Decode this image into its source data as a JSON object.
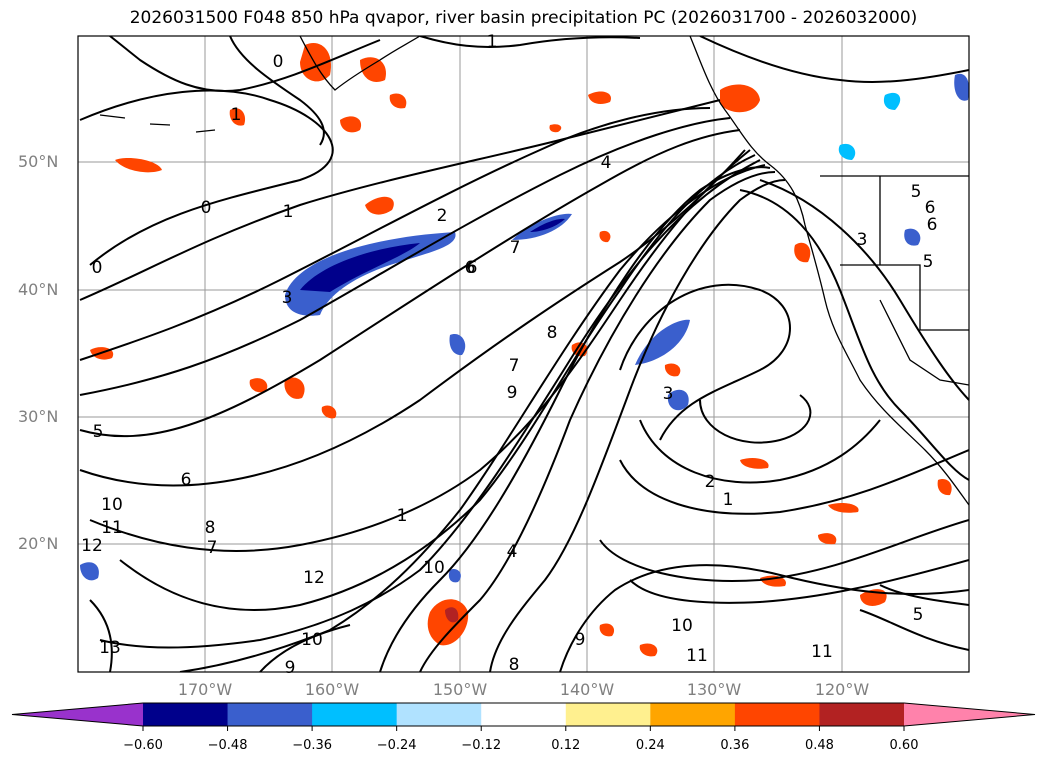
{
  "title": "2026031500 F048 850 hPa qvapor, river basin precipitation PC (2026031700 - 2026032000)",
  "map": {
    "lat_labels": [
      "50°N",
      "40°N",
      "30°N",
      "20°N"
    ],
    "lon_labels": [
      "170°W",
      "160°W",
      "150°W",
      "140°W",
      "130°W",
      "120°W"
    ],
    "contour_labels": [
      "1",
      "0",
      "1",
      "0",
      "0",
      "1",
      "2",
      "3",
      "4",
      "6",
      "7",
      "8",
      "9",
      "10",
      "4",
      "3",
      "2",
      "1",
      "5",
      "6",
      "10",
      "11",
      "12",
      "8",
      "7",
      "6",
      "5",
      "12",
      "10",
      "9",
      "13",
      "10",
      "11",
      "11",
      "5",
      "7",
      "5",
      "6",
      "1",
      "6",
      "8",
      "9",
      "3"
    ]
  },
  "colorbar": {
    "colors": [
      "#9932cc",
      "#00008b",
      "#3a5fcd",
      "#00bfff",
      "#b0e2ff",
      "#ffffff",
      "#fff08f",
      "#ffa500",
      "#ff4500",
      "#b22222",
      "#ff82ab"
    ],
    "ticks": [
      "−0.60",
      "−0.48",
      "−0.36",
      "−0.24",
      "−0.12",
      "0.12",
      "0.24",
      "0.36",
      "0.48",
      "0.60"
    ]
  }
}
